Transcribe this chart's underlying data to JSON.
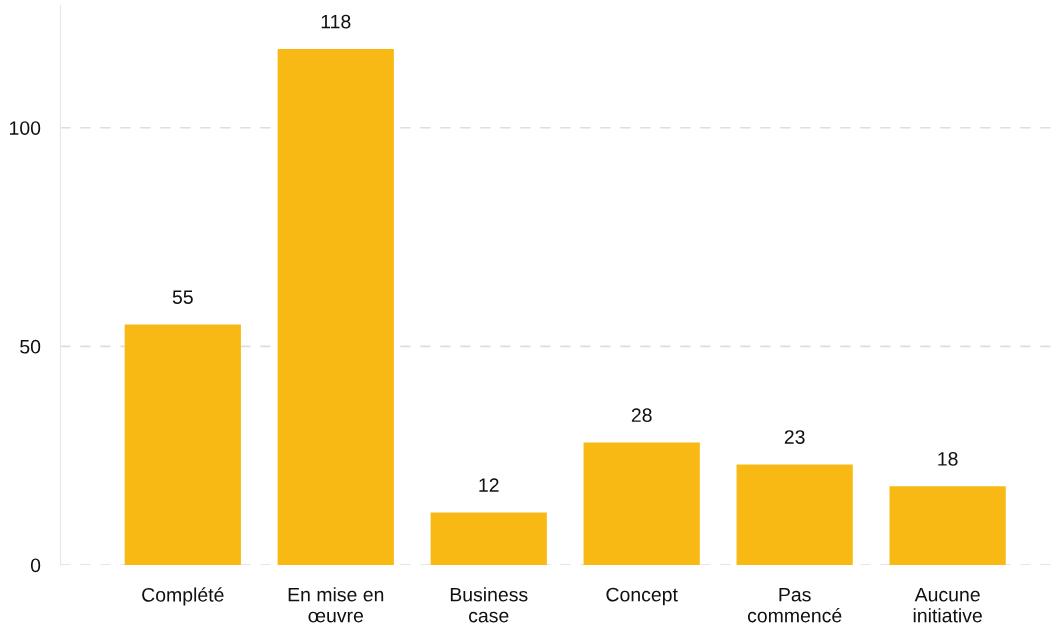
{
  "chart_data": {
    "type": "bar",
    "categories": [
      "Complété",
      "En mise en\nœuvre",
      "Business\ncase",
      "Concept",
      "Pas\ncommencé",
      "Aucune\ninitiative"
    ],
    "values": [
      55,
      118,
      12,
      28,
      23,
      18
    ],
    "color": "#f9b914",
    "ylim": [
      0,
      128
    ],
    "yticks": [
      0,
      50,
      100
    ],
    "grid": "y",
    "data_labels": true,
    "legend": false
  }
}
